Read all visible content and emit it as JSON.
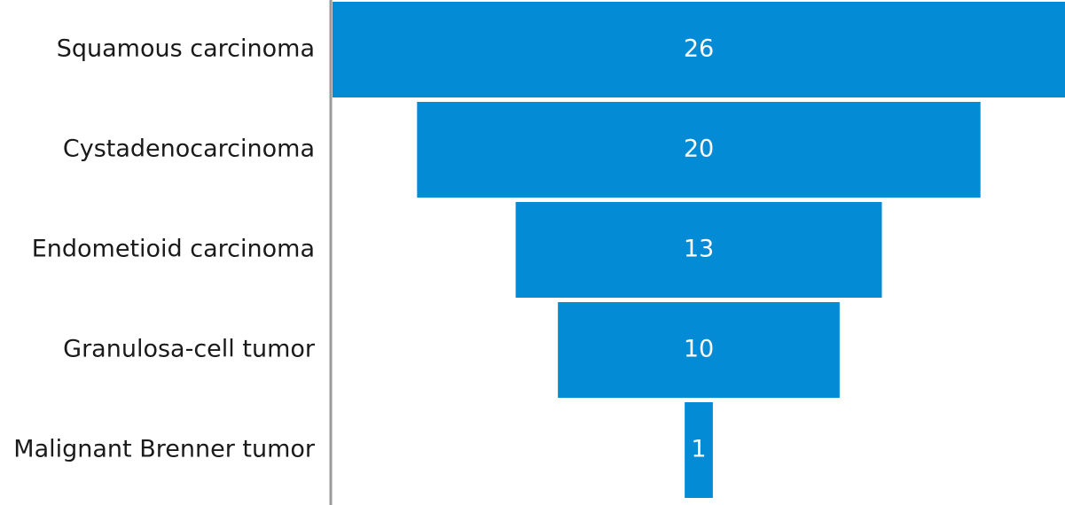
{
  "chart_data": {
    "type": "funnel",
    "categories": [
      "Squamous carcinoma",
      "Cystadenocarcinoma",
      "Endometioid carcinoma",
      "Granulosa-cell tumor",
      "Malignant Brenner tumor"
    ],
    "values": [
      26,
      20,
      13,
      10,
      1
    ],
    "color": "#038bd6"
  }
}
